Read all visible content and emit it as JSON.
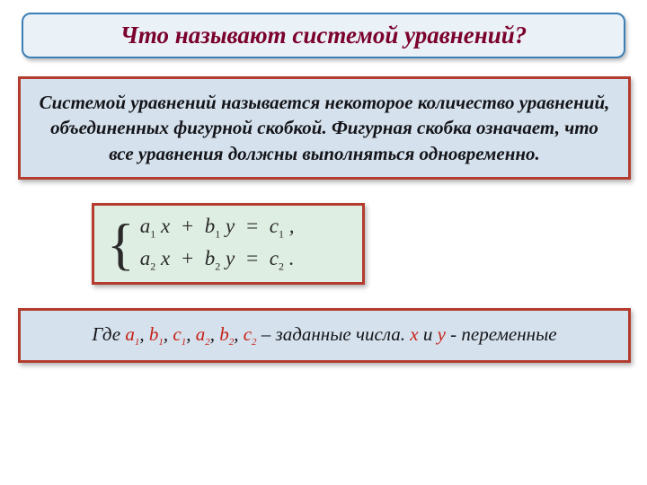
{
  "title": "Что называют системой уравнений?",
  "definition": "Системой уравнений называется некоторое количество уравнений, объединенных фигурной скобкой. Фигурная скобка означает, что все уравнения должны выполняться одновременно.",
  "formula": {
    "eq1_a": "a",
    "eq1_asub": "1",
    "eq1_x": "x",
    "eq1_b": "b",
    "eq1_bsub": "1",
    "eq1_y": "y",
    "eq1_c": "c",
    "eq1_csub": "1",
    "eq1_tail": " ,",
    "eq2_a": "a",
    "eq2_asub": "2",
    "eq2_x": "x",
    "eq2_b": "b",
    "eq2_bsub": "2",
    "eq2_y": "y",
    "eq2_c": "c",
    "eq2_csub": "2",
    "eq2_tail": " ."
  },
  "where": {
    "prefix": "Где ",
    "c1": "a",
    "c1s": "1",
    "c2": "b",
    "c2s": "1",
    "c3": "c",
    "c3s": "1",
    "c4": "a",
    "c4s": "2",
    "c5": "b",
    "c5s": "2",
    "c6": "c",
    "c6s": "2",
    "mid": " – заданные числа. ",
    "vx": "x",
    "and": " и ",
    "vy": "y",
    "suffix": " - переменные"
  },
  "colors": {
    "title_border": "#3b7fb7",
    "title_bg": "#eaf1f7",
    "title_text": "#7b002c",
    "box_border": "#b33c2e",
    "def_bg": "#d5e1ec",
    "formula_bg": "#dfeee2",
    "accent_red": "#c62016",
    "body_text": "#14151a"
  },
  "layout": {
    "slide_w": 720,
    "slide_h": 540,
    "title_fontsize": 27,
    "body_fontsize": 21,
    "formula_fontsize": 23
  }
}
